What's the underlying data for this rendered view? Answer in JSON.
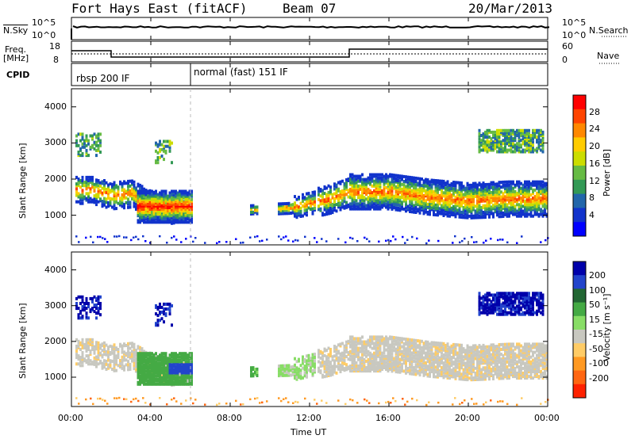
{
  "header": {
    "station": "Fort Hays East (fitACF)",
    "beam": "Beam 07",
    "date": "20/Mar/2013"
  },
  "top_panels": {
    "nsky": {
      "label": "N.Sky",
      "ticks": [
        "10^5",
        "10^0"
      ]
    },
    "nsearch": {
      "label": "N.Search",
      "ticks": [
        "10^5",
        "10^0"
      ]
    },
    "freq": {
      "label": "Freq.",
      "unit": "[MHz]",
      "ticks": [
        "18",
        "8"
      ]
    },
    "nave": {
      "label": "Nave",
      "ticks": [
        "60",
        "0"
      ]
    },
    "cpid": {
      "label": "CPID",
      "modes": [
        "rbsp 200 IF",
        "normal (fast) 151 IF"
      ]
    }
  },
  "power_panel": {
    "ylabel": "Slant Range [km]",
    "yticks": [
      "4000",
      "3000",
      "2000",
      "1000"
    ],
    "colorbar": {
      "label": "Power [dB]",
      "ticks": [
        "28",
        "24",
        "20",
        "16",
        "12",
        "8",
        "4"
      ],
      "colors": [
        "#ff0000",
        "#ff4400",
        "#ff8800",
        "#ffcc00",
        "#ccdd00",
        "#66bb44",
        "#339955",
        "#2266aa",
        "#1133cc",
        "#0000ff"
      ]
    }
  },
  "velocity_panel": {
    "ylabel": "Slant Range [km]",
    "yticks": [
      "4000",
      "3000",
      "2000",
      "1000"
    ],
    "colorbar": {
      "label": "Velocity [m s⁻¹]",
      "ticks": [
        "200",
        "100",
        "50",
        "15",
        "-15",
        "-50",
        "-100",
        "-200"
      ],
      "colors": [
        "#0000aa",
        "#2244cc",
        "#226633",
        "#44aa44",
        "#88dd66",
        "#c8c8c0",
        "#ffcc66",
        "#ff9922",
        "#ff6611",
        "#ff2200"
      ]
    }
  },
  "xaxis": {
    "label": "Time UT",
    "ticks": [
      "00:00",
      "04:00",
      "08:00",
      "12:00",
      "16:00",
      "20:00",
      "00:00"
    ]
  },
  "chart_data": [
    {
      "type": "heatmap",
      "title": "Power",
      "xlabel": "Time UT",
      "ylabel": "Slant Range [km]",
      "xlim": [
        0,
        24
      ],
      "ylim": [
        180,
        4500
      ],
      "zlabel": "Power [dB]",
      "zlim": [
        0,
        30
      ],
      "series": [
        {
          "name": "",
          "x": [
            1,
            2,
            3,
            4,
            5,
            6
          ],
          "values": [
            1750,
            1600,
            1650,
            1350,
            1200,
            1300
          ]
        },
        {
          "name": "",
          "x": [
            9,
            11,
            13,
            14,
            16,
            18,
            20,
            22,
            24
          ],
          "values": [
            1200,
            1250,
            1500,
            1700,
            1700,
            1550,
            1450,
            1500,
            1500
          ]
        }
      ]
    },
    {
      "type": "heatmap",
      "title": "Velocity",
      "xlabel": "Time UT",
      "ylabel": "Slant Range [km]",
      "xlim": [
        0,
        24
      ],
      "ylim": [
        180,
        4500
      ],
      "zlabel": "Velocity [m s⁻¹]",
      "zlim": [
        -250,
        250
      ]
    }
  ]
}
